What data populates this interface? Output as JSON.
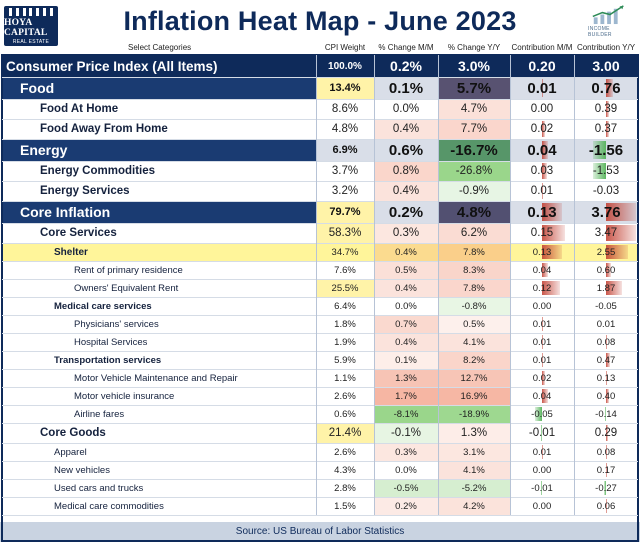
{
  "header": {
    "title": "Inflation Heat Map - June 2023",
    "logo_left_line1": "HOYA CAPITAL",
    "logo_left_line2": "REAL ESTATE",
    "logo_right_text": "INCOME BUILDER",
    "select_label": "Select Categories"
  },
  "columns": [
    "CPI Weight",
    "% Change M/M",
    "% Change Y/Y",
    "Contribution M/M",
    "Contribution Y/Y"
  ],
  "source": "Source: US Bureau of Labor Statistics",
  "colors": {
    "navy": "#0e2a5a",
    "major_row": "#1a3b72",
    "shelter_highlight": "#fff59a",
    "hot": "#f4b09a",
    "cool": "#bfe2b0",
    "bar_red": "#c0392b",
    "bar_green": "#4caf50"
  },
  "chart_data": {
    "type": "table",
    "title": "Inflation Heat Map - June 2023",
    "rows": [
      {
        "name": "Consumer Price Index (All Items)",
        "level": "cpi",
        "weight": "100.0%",
        "mm": "0.2%",
        "yy": "3.0%",
        "cmm": "0.20",
        "cyy": "3.00"
      },
      {
        "name": "Food",
        "level": "major",
        "weight": "13.4%",
        "mm": "0.1%",
        "yy": "5.7%",
        "cmm": "0.01",
        "cyy": "0.76"
      },
      {
        "name": "Food At Home",
        "level": "sub",
        "weight": "8.6%",
        "mm": "0.0%",
        "yy": "4.7%",
        "cmm": "0.00",
        "cyy": "0.39"
      },
      {
        "name": "Food Away From Home",
        "level": "sub",
        "weight": "4.8%",
        "mm": "0.4%",
        "yy": "7.7%",
        "cmm": "0.02",
        "cyy": "0.37"
      },
      {
        "name": "Energy",
        "level": "major",
        "weight": "6.9%",
        "mm": "0.6%",
        "yy": "-16.7%",
        "cmm": "0.04",
        "cyy": "-1.56"
      },
      {
        "name": "Energy Commodities",
        "level": "sub",
        "weight": "3.7%",
        "mm": "0.8%",
        "yy": "-26.8%",
        "cmm": "0.03",
        "cyy": "-1.53"
      },
      {
        "name": "Energy Services",
        "level": "sub",
        "weight": "3.2%",
        "mm": "0.4%",
        "yy": "-0.9%",
        "cmm": "0.01",
        "cyy": "-0.03"
      },
      {
        "name": "Core Inflation",
        "level": "major",
        "weight": "79.7%",
        "mm": "0.2%",
        "yy": "4.8%",
        "cmm": "0.13",
        "cyy": "3.76"
      },
      {
        "name": "Core Services",
        "level": "sub",
        "weight": "58.3%",
        "mm": "0.3%",
        "yy": "6.2%",
        "cmm": "0.15",
        "cyy": "3.47"
      },
      {
        "name": "Shelter",
        "level": "shelter",
        "weight": "34.7%",
        "mm": "0.4%",
        "yy": "7.8%",
        "cmm": "0.13",
        "cyy": "2.55"
      },
      {
        "name": "Rent of primary residence",
        "level": "item",
        "weight": "7.6%",
        "mm": "0.5%",
        "yy": "8.3%",
        "cmm": "0.04",
        "cyy": "0.60"
      },
      {
        "name": "Owners' Equivalent Rent",
        "level": "item",
        "weight": "25.5%",
        "mm": "0.4%",
        "yy": "7.8%",
        "cmm": "0.12",
        "cyy": "1.87"
      },
      {
        "name": "Medical care services",
        "level": "group",
        "weight": "6.4%",
        "mm": "0.0%",
        "yy": "-0.8%",
        "cmm": "0.00",
        "cyy": "-0.05"
      },
      {
        "name": "Physicians' services",
        "level": "item",
        "weight": "1.8%",
        "mm": "0.7%",
        "yy": "0.5%",
        "cmm": "0.01",
        "cyy": "0.01"
      },
      {
        "name": "Hospital Services",
        "level": "item",
        "weight": "1.9%",
        "mm": "0.4%",
        "yy": "4.1%",
        "cmm": "0.01",
        "cyy": "0.08"
      },
      {
        "name": "Transportation services",
        "level": "group",
        "weight": "5.9%",
        "mm": "0.1%",
        "yy": "8.2%",
        "cmm": "0.01",
        "cyy": "0.47"
      },
      {
        "name": "Motor Vehicle Maintenance and Repair",
        "level": "item",
        "weight": "1.1%",
        "mm": "1.3%",
        "yy": "12.7%",
        "cmm": "0.02",
        "cyy": "0.13"
      },
      {
        "name": "Motor vehicle insurance",
        "level": "item",
        "weight": "2.6%",
        "mm": "1.7%",
        "yy": "16.9%",
        "cmm": "0.04",
        "cyy": "0.40"
      },
      {
        "name": "Airline fares",
        "level": "item",
        "weight": "0.6%",
        "mm": "-8.1%",
        "yy": "-18.9%",
        "cmm": "-0.05",
        "cyy": "-0.14"
      },
      {
        "name": "Core Goods",
        "level": "goods",
        "weight": "21.4%",
        "mm": "-0.1%",
        "yy": "1.3%",
        "cmm": "-0.01",
        "cyy": "0.29"
      },
      {
        "name": "Apparel",
        "level": "plain",
        "weight": "2.6%",
        "mm": "0.3%",
        "yy": "3.1%",
        "cmm": "0.01",
        "cyy": "0.08"
      },
      {
        "name": "New vehicles",
        "level": "plain",
        "weight": "4.3%",
        "mm": "0.0%",
        "yy": "4.1%",
        "cmm": "0.00",
        "cyy": "0.17"
      },
      {
        "name": "Used cars and trucks",
        "level": "plain",
        "weight": "2.8%",
        "mm": "-0.5%",
        "yy": "-5.2%",
        "cmm": "-0.01",
        "cyy": "-0.27"
      },
      {
        "name": "Medical care commodities",
        "level": "plain",
        "weight": "1.5%",
        "mm": "0.2%",
        "yy": "4.2%",
        "cmm": "0.00",
        "cyy": "0.06"
      }
    ]
  }
}
